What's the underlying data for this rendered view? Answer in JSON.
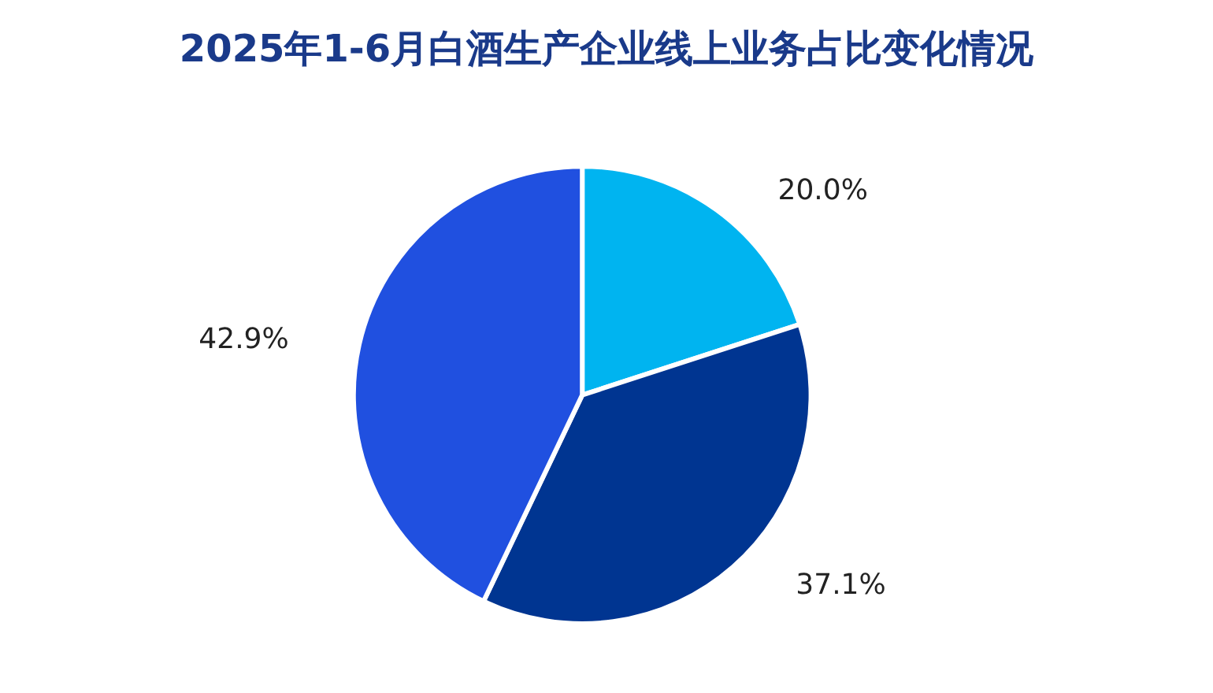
{
  "chart_data": {
    "type": "pie",
    "title": "2025年1-6月白酒生产企业线上业务占比变化情况",
    "categories": [
      null,
      null,
      null
    ],
    "values": [
      20.0,
      37.1,
      42.9
    ],
    "value_labels": [
      "20.0%",
      "37.1%",
      "42.9%"
    ],
    "colors": [
      "#00b4f0",
      "#003591",
      "#2050e0"
    ]
  }
}
